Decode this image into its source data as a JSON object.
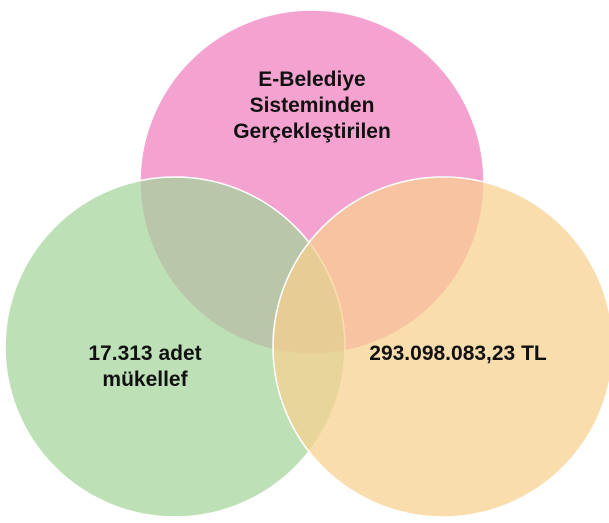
{
  "diagram": {
    "type": "venn",
    "circles": [
      {
        "name": "top",
        "color": "#f07fbe",
        "lines": [
          "E-Belediye",
          "Sisteminden",
          "Gerçekleştirilen"
        ]
      },
      {
        "name": "left",
        "color": "#a3d49a",
        "lines": [
          "17.313 adet",
          "mükellef"
        ]
      },
      {
        "name": "right",
        "color": "#f8d08e",
        "lines": [
          "293.098.083,23 TL"
        ]
      }
    ]
  }
}
